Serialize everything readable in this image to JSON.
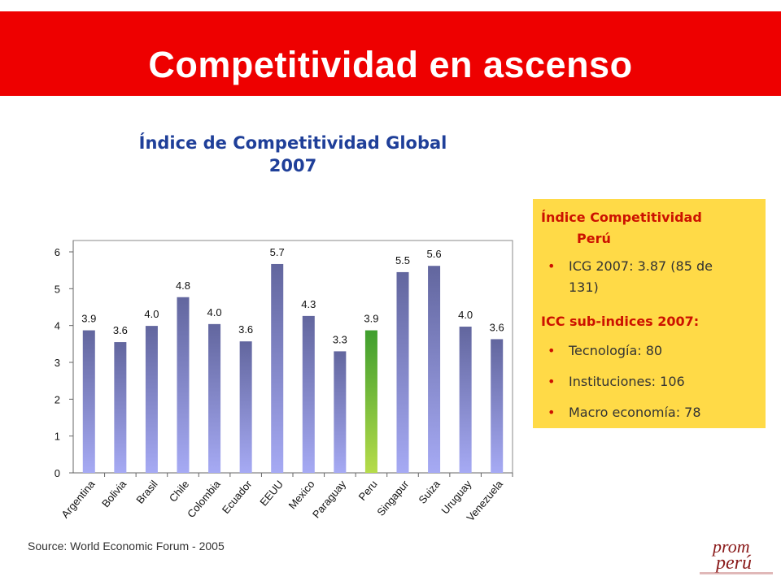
{
  "header": {
    "title": "Competitividad en ascenso"
  },
  "colors": {
    "header_bg": "#ee0000",
    "bar": "#6f74b3",
    "bar_highlight": "#8ec63f",
    "info_bg": "#ffda47",
    "title_blue": "#1f3f99"
  },
  "chart_data": {
    "type": "bar",
    "title": "Índice de Competitividad Global 2007",
    "title_lines": [
      "Índice de Competitividad Global",
      "2007"
    ],
    "categories": [
      "Argentina",
      "Bolivia",
      "Brasil",
      "Chile",
      "Colombia",
      "Ecuador",
      "EEUU",
      "Mexico",
      "Paraguay",
      "Peru",
      "Singapur",
      "Suiza",
      "Uruguay",
      "Venezuela"
    ],
    "values": [
      3.87,
      3.55,
      3.99,
      4.77,
      4.04,
      3.57,
      5.67,
      4.26,
      3.3,
      3.87,
      5.45,
      5.62,
      3.97,
      3.63
    ],
    "data_labels": [
      "3.9",
      "3.6",
      "4.0",
      "4.8",
      "4.0",
      "3.6",
      "5.7",
      "4.3",
      "3.3",
      "3.9",
      "5.5",
      "5.6",
      "4.0",
      "3.6"
    ],
    "highlight": "Peru",
    "ylim": [
      0,
      6
    ],
    "yticks": [
      "0",
      "1",
      "2",
      "3",
      "4",
      "5",
      "6"
    ],
    "grid": false,
    "xlabel": "",
    "ylabel": ""
  },
  "info": {
    "head_line1": "Índice Competitividad",
    "head_line2": "Perú",
    "bullets_top": [
      {
        "line1": "ICG 2007: 3.87 (85 de",
        "line2": "131)"
      }
    ],
    "icc_head": "ICC sub-indices 2007:",
    "bullets": [
      "Tecnología: 80",
      "Instituciones: 106",
      "Macro economía: 78"
    ]
  },
  "source": "Source: World Economic Forum - 2005",
  "logo": {
    "line1": "prom",
    "line2": "perú"
  }
}
